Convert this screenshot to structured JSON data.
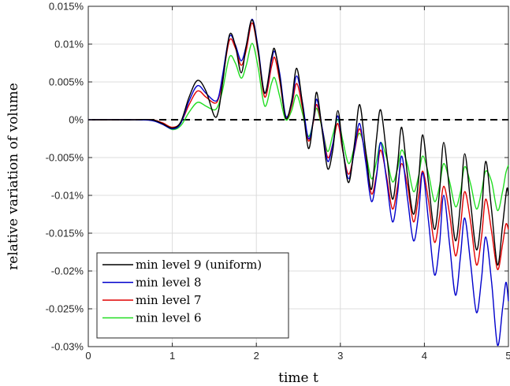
{
  "chart_data": {
    "type": "line",
    "title": "",
    "xlabel": "time t",
    "ylabel": "relative variation of volume",
    "xlim": [
      0,
      5
    ],
    "ylim": [
      -0.03,
      0.015
    ],
    "x_ticks": [
      0,
      1,
      2,
      3,
      4,
      5
    ],
    "x_tick_labels": [
      "0",
      "1",
      "2",
      "3",
      "4",
      "5"
    ],
    "y_ticks": [
      0.015,
      0.01,
      0.005,
      0,
      -0.005,
      -0.01,
      -0.015,
      -0.02,
      -0.025,
      -0.03
    ],
    "y_tick_labels": [
      "0.015%",
      "0.01%",
      "0.005%",
      "0%",
      "-0.005%",
      "-0.01%",
      "-0.015%",
      "-0.02%",
      "-0.025%",
      "-0.03%"
    ],
    "grid": true,
    "legend_position": "bottom-left",
    "reference_line": {
      "y": 0,
      "style": "dashed",
      "color": "#000000"
    },
    "series": [
      {
        "name": "min level 9 (uniform)",
        "color": "#000000",
        "points": [
          [
            0,
            0
          ],
          [
            0.5,
            0
          ],
          [
            0.75,
            0
          ],
          [
            0.88,
            -0.0005
          ],
          [
            1.0,
            -0.0011
          ],
          [
            1.1,
            -0.0003
          ],
          [
            1.2,
            0.003
          ],
          [
            1.3,
            0.0052
          ],
          [
            1.4,
            0.0038
          ],
          [
            1.5,
            0.0005
          ],
          [
            1.55,
            0.0012
          ],
          [
            1.6,
            0.005
          ],
          [
            1.68,
            0.0112
          ],
          [
            1.75,
            0.0098
          ],
          [
            1.82,
            0.0062
          ],
          [
            1.88,
            0.0098
          ],
          [
            1.95,
            0.0132
          ],
          [
            2.02,
            0.0092
          ],
          [
            2.1,
            0.0035
          ],
          [
            2.18,
            0.0082
          ],
          [
            2.22,
            0.0093
          ],
          [
            2.28,
            0.0055
          ],
          [
            2.35,
            0.0002
          ],
          [
            2.42,
            0.0025
          ],
          [
            2.48,
            0.0068
          ],
          [
            2.55,
            0.002
          ],
          [
            2.62,
            -0.0038
          ],
          [
            2.68,
            0.0002
          ],
          [
            2.72,
            0.0036
          ],
          [
            2.79,
            -0.002
          ],
          [
            2.85,
            -0.0065
          ],
          [
            2.91,
            -0.004
          ],
          [
            2.97,
            0.0012
          ],
          [
            3.03,
            -0.004
          ],
          [
            3.1,
            -0.0083
          ],
          [
            3.17,
            -0.003
          ],
          [
            3.23,
            0.002
          ],
          [
            3.3,
            -0.004
          ],
          [
            3.37,
            -0.0092
          ],
          [
            3.43,
            -0.0025
          ],
          [
            3.48,
            0.0013
          ],
          [
            3.55,
            -0.0045
          ],
          [
            3.62,
            -0.0105
          ],
          [
            3.68,
            -0.006
          ],
          [
            3.73,
            -0.001
          ],
          [
            3.8,
            -0.0075
          ],
          [
            3.87,
            -0.0125
          ],
          [
            3.93,
            -0.008
          ],
          [
            3.98,
            -0.002
          ],
          [
            4.05,
            -0.0085
          ],
          [
            4.12,
            -0.0145
          ],
          [
            4.18,
            -0.0095
          ],
          [
            4.23,
            -0.003
          ],
          [
            4.3,
            -0.0095
          ],
          [
            4.37,
            -0.016
          ],
          [
            4.43,
            -0.011
          ],
          [
            4.48,
            -0.0045
          ],
          [
            4.55,
            -0.011
          ],
          [
            4.62,
            -0.0172
          ],
          [
            4.68,
            -0.0125
          ],
          [
            4.73,
            -0.0055
          ],
          [
            4.8,
            -0.012
          ],
          [
            4.87,
            -0.0192
          ],
          [
            4.93,
            -0.014
          ],
          [
            4.98,
            -0.0092
          ],
          [
            5.0,
            -0.01
          ]
        ]
      },
      {
        "name": "min level 8",
        "color": "#0000cc",
        "points": [
          [
            0,
            0
          ],
          [
            0.5,
            0
          ],
          [
            0.75,
            -0.0001
          ],
          [
            0.88,
            -0.0006
          ],
          [
            1.0,
            -0.0012
          ],
          [
            1.1,
            -0.0005
          ],
          [
            1.2,
            0.0025
          ],
          [
            1.3,
            0.0045
          ],
          [
            1.4,
            0.0035
          ],
          [
            1.5,
            0.0025
          ],
          [
            1.55,
            0.003
          ],
          [
            1.6,
            0.006
          ],
          [
            1.68,
            0.011
          ],
          [
            1.75,
            0.0099
          ],
          [
            1.82,
            0.0078
          ],
          [
            1.88,
            0.0098
          ],
          [
            1.95,
            0.0133
          ],
          [
            2.02,
            0.0096
          ],
          [
            2.1,
            0.0035
          ],
          [
            2.18,
            0.0078
          ],
          [
            2.22,
            0.009
          ],
          [
            2.28,
            0.006
          ],
          [
            2.35,
            0.0005
          ],
          [
            2.42,
            0.0022
          ],
          [
            2.48,
            0.0058
          ],
          [
            2.55,
            0.0022
          ],
          [
            2.62,
            -0.0025
          ],
          [
            2.68,
            0.0
          ],
          [
            2.72,
            0.0027
          ],
          [
            2.79,
            -0.0015
          ],
          [
            2.85,
            -0.0055
          ],
          [
            2.91,
            -0.0032
          ],
          [
            2.97,
            0.0005
          ],
          [
            3.03,
            -0.004
          ],
          [
            3.1,
            -0.0078
          ],
          [
            3.17,
            -0.0038
          ],
          [
            3.23,
            -0.0005
          ],
          [
            3.3,
            -0.0055
          ],
          [
            3.37,
            -0.0108
          ],
          [
            3.43,
            -0.0075
          ],
          [
            3.48,
            -0.003
          ],
          [
            3.55,
            -0.008
          ],
          [
            3.62,
            -0.0135
          ],
          [
            3.68,
            -0.0098
          ],
          [
            3.73,
            -0.0048
          ],
          [
            3.8,
            -0.0105
          ],
          [
            3.87,
            -0.016
          ],
          [
            3.93,
            -0.0125
          ],
          [
            3.98,
            -0.007
          ],
          [
            4.05,
            -0.0135
          ],
          [
            4.12,
            -0.0205
          ],
          [
            4.18,
            -0.0165
          ],
          [
            4.23,
            -0.01
          ],
          [
            4.3,
            -0.0165
          ],
          [
            4.37,
            -0.0232
          ],
          [
            4.43,
            -0.018
          ],
          [
            4.48,
            -0.013
          ],
          [
            4.55,
            -0.019
          ],
          [
            4.62,
            -0.0255
          ],
          [
            4.68,
            -0.021
          ],
          [
            4.73,
            -0.0155
          ],
          [
            4.8,
            -0.0215
          ],
          [
            4.87,
            -0.0298
          ],
          [
            4.93,
            -0.025
          ],
          [
            4.97,
            -0.0215
          ],
          [
            5.0,
            -0.024
          ]
        ]
      },
      {
        "name": "min level 7",
        "color": "#e00000",
        "points": [
          [
            0,
            0
          ],
          [
            0.5,
            0
          ],
          [
            0.75,
            0
          ],
          [
            0.88,
            -0.0004
          ],
          [
            1.0,
            -0.001
          ],
          [
            1.1,
            -0.0004
          ],
          [
            1.2,
            0.002
          ],
          [
            1.3,
            0.0038
          ],
          [
            1.4,
            0.003
          ],
          [
            1.5,
            0.0022
          ],
          [
            1.55,
            0.0028
          ],
          [
            1.6,
            0.0055
          ],
          [
            1.68,
            0.0105
          ],
          [
            1.75,
            0.0095
          ],
          [
            1.82,
            0.0072
          ],
          [
            1.88,
            0.0092
          ],
          [
            1.95,
            0.0128
          ],
          [
            2.02,
            0.009
          ],
          [
            2.1,
            0.003
          ],
          [
            2.18,
            0.007
          ],
          [
            2.22,
            0.0082
          ],
          [
            2.28,
            0.005
          ],
          [
            2.35,
            0.0003
          ],
          [
            2.42,
            0.0018
          ],
          [
            2.48,
            0.0048
          ],
          [
            2.55,
            0.0015
          ],
          [
            2.62,
            -0.0028
          ],
          [
            2.68,
            -0.0002
          ],
          [
            2.72,
            0.002
          ],
          [
            2.79,
            -0.0015
          ],
          [
            2.85,
            -0.005
          ],
          [
            2.91,
            -0.0032
          ],
          [
            2.97,
            -0.0005
          ],
          [
            3.03,
            -0.0042
          ],
          [
            3.1,
            -0.0072
          ],
          [
            3.17,
            -0.004
          ],
          [
            3.23,
            -0.0012
          ],
          [
            3.3,
            -0.005
          ],
          [
            3.37,
            -0.0098
          ],
          [
            3.43,
            -0.0072
          ],
          [
            3.48,
            -0.004
          ],
          [
            3.55,
            -0.0075
          ],
          [
            3.62,
            -0.0118
          ],
          [
            3.68,
            -0.0088
          ],
          [
            3.73,
            -0.0058
          ],
          [
            3.8,
            -0.0088
          ],
          [
            3.87,
            -0.0135
          ],
          [
            3.93,
            -0.0102
          ],
          [
            3.98,
            -0.0068
          ],
          [
            4.05,
            -0.0108
          ],
          [
            4.12,
            -0.0162
          ],
          [
            4.18,
            -0.0128
          ],
          [
            4.23,
            -0.0088
          ],
          [
            4.3,
            -0.0125
          ],
          [
            4.37,
            -0.018
          ],
          [
            4.43,
            -0.014
          ],
          [
            4.48,
            -0.0095
          ],
          [
            4.55,
            -0.0135
          ],
          [
            4.62,
            -0.0192
          ],
          [
            4.68,
            -0.0155
          ],
          [
            4.73,
            -0.0105
          ],
          [
            4.8,
            -0.0148
          ],
          [
            4.87,
            -0.0198
          ],
          [
            4.93,
            -0.0165
          ],
          [
            4.97,
            -0.0138
          ],
          [
            5.0,
            -0.0145
          ]
        ]
      },
      {
        "name": "min level 6",
        "color": "#22dd22",
        "points": [
          [
            0,
            0
          ],
          [
            0.5,
            0
          ],
          [
            0.75,
            0
          ],
          [
            0.88,
            -0.0005
          ],
          [
            1.0,
            -0.0013
          ],
          [
            1.1,
            -0.0008
          ],
          [
            1.2,
            0.001
          ],
          [
            1.3,
            0.0023
          ],
          [
            1.4,
            0.0018
          ],
          [
            1.5,
            0.0013
          ],
          [
            1.55,
            0.002
          ],
          [
            1.6,
            0.004
          ],
          [
            1.68,
            0.0083
          ],
          [
            1.75,
            0.0075
          ],
          [
            1.82,
            0.0055
          ],
          [
            1.88,
            0.0072
          ],
          [
            1.95,
            0.0101
          ],
          [
            2.02,
            0.007
          ],
          [
            2.1,
            0.0018
          ],
          [
            2.18,
            0.0048
          ],
          [
            2.22,
            0.0055
          ],
          [
            2.28,
            0.003
          ],
          [
            2.35,
            0.0
          ],
          [
            2.42,
            0.0012
          ],
          [
            2.48,
            0.0033
          ],
          [
            2.55,
            0.0008
          ],
          [
            2.62,
            -0.0022
          ],
          [
            2.68,
            -0.0002
          ],
          [
            2.72,
            0.0015
          ],
          [
            2.79,
            -0.0015
          ],
          [
            2.85,
            -0.0042
          ],
          [
            2.91,
            -0.002
          ],
          [
            2.97,
            0.0
          ],
          [
            3.03,
            -0.0028
          ],
          [
            3.1,
            -0.0058
          ],
          [
            3.17,
            -0.0035
          ],
          [
            3.23,
            -0.0018
          ],
          [
            3.3,
            -0.0042
          ],
          [
            3.37,
            -0.0078
          ],
          [
            3.43,
            -0.0055
          ],
          [
            3.48,
            -0.003
          ],
          [
            3.55,
            -0.005
          ],
          [
            3.62,
            -0.0082
          ],
          [
            3.68,
            -0.0065
          ],
          [
            3.73,
            -0.004
          ],
          [
            3.8,
            -0.006
          ],
          [
            3.87,
            -0.0095
          ],
          [
            3.93,
            -0.0075
          ],
          [
            3.98,
            -0.0048
          ],
          [
            4.05,
            -0.0072
          ],
          [
            4.12,
            -0.0108
          ],
          [
            4.18,
            -0.0088
          ],
          [
            4.23,
            -0.0058
          ],
          [
            4.3,
            -0.0082
          ],
          [
            4.37,
            -0.0115
          ],
          [
            4.43,
            -0.0095
          ],
          [
            4.48,
            -0.0062
          ],
          [
            4.55,
            -0.0085
          ],
          [
            4.62,
            -0.0118
          ],
          [
            4.68,
            -0.0095
          ],
          [
            4.73,
            -0.0068
          ],
          [
            4.8,
            -0.0082
          ],
          [
            4.87,
            -0.012
          ],
          [
            4.93,
            -0.0095
          ],
          [
            4.97,
            -0.007
          ],
          [
            5.0,
            -0.006
          ]
        ]
      }
    ]
  }
}
